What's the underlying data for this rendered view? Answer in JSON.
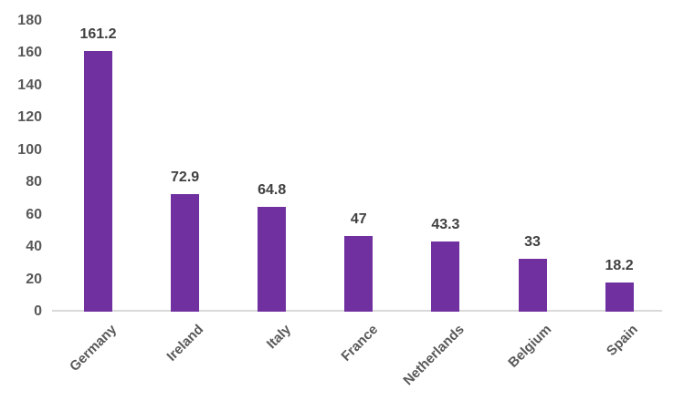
{
  "chart_data": {
    "type": "bar",
    "title": "",
    "xlabel": "",
    "ylabel": "",
    "categories": [
      "Germany",
      "Ireland",
      "Italy",
      "France",
      "Netherlands",
      "Belgium",
      "Spain"
    ],
    "values": [
      161.2,
      72.9,
      64.8,
      47,
      43.3,
      33,
      18.2
    ],
    "data_labels": [
      "161.2",
      "72.9",
      "64.8",
      "47",
      "43.3",
      "33",
      "18.2"
    ],
    "ylim": [
      0,
      180
    ],
    "yticks": [
      0,
      20,
      40,
      60,
      80,
      100,
      120,
      140,
      160,
      180
    ],
    "grid": false,
    "legend": false,
    "bar_color": "#7030A0",
    "axis_line_color": "#D9D9D9",
    "tick_label_color": "#595959",
    "data_label_color": "#404040",
    "category_label_color": "#595959"
  }
}
